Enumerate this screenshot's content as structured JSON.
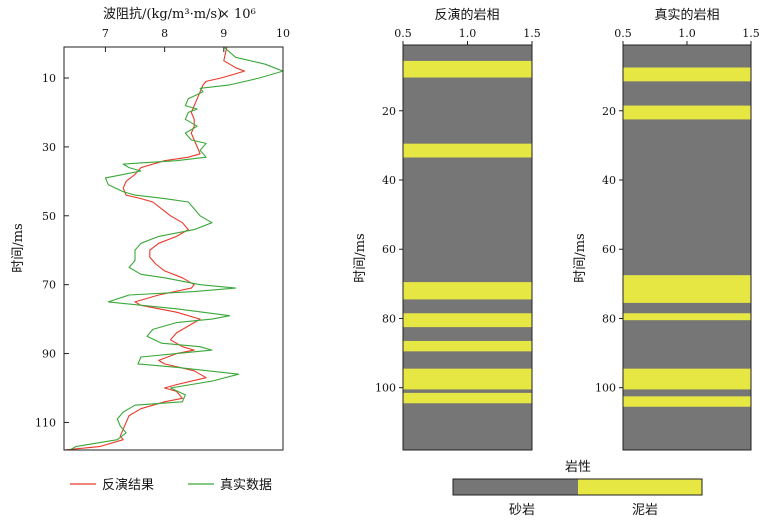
{
  "chart_data": [
    {
      "type": "line",
      "xlabel": "波阻抗/(kg/m³·m/s)",
      "xlabel_exp": "× 10⁶",
      "ylabel": "时间/ms",
      "xlim": [
        6.3,
        10
      ],
      "ylim": [
        118,
        1
      ],
      "xticks": [
        7,
        8,
        9,
        10
      ],
      "yticks": [
        10,
        30,
        50,
        70,
        90,
        110
      ],
      "series": [
        {
          "name": "反演结果",
          "color": "#e8392b",
          "points": [
            [
              9.05,
              1
            ],
            [
              9.0,
              5
            ],
            [
              9.1,
              6
            ],
            [
              9.2,
              7
            ],
            [
              9.35,
              8
            ],
            [
              9.15,
              9
            ],
            [
              8.95,
              10
            ],
            [
              8.7,
              11
            ],
            [
              8.65,
              12
            ],
            [
              8.6,
              14
            ],
            [
              8.55,
              16
            ],
            [
              8.5,
              18
            ],
            [
              8.45,
              20
            ],
            [
              8.5,
              22
            ],
            [
              8.5,
              24
            ],
            [
              8.45,
              26
            ],
            [
              8.5,
              28
            ],
            [
              8.55,
              30
            ],
            [
              8.6,
              32
            ],
            [
              8.4,
              33
            ],
            [
              8.0,
              34
            ],
            [
              7.6,
              36
            ],
            [
              7.5,
              38
            ],
            [
              7.35,
              40
            ],
            [
              7.3,
              42
            ],
            [
              7.35,
              44
            ],
            [
              7.6,
              45
            ],
            [
              7.8,
              46
            ],
            [
              7.95,
              48
            ],
            [
              8.1,
              50
            ],
            [
              8.3,
              52
            ],
            [
              8.4,
              54
            ],
            [
              8.2,
              56
            ],
            [
              7.9,
              58
            ],
            [
              7.75,
              60
            ],
            [
              7.75,
              62
            ],
            [
              7.85,
              64
            ],
            [
              8.0,
              66
            ],
            [
              8.3,
              68
            ],
            [
              8.5,
              70
            ],
            [
              8.45,
              71
            ],
            [
              7.9,
              73
            ],
            [
              7.5,
              75
            ],
            [
              7.6,
              76
            ],
            [
              8.2,
              78
            ],
            [
              8.6,
              80
            ],
            [
              8.4,
              82
            ],
            [
              8.2,
              84
            ],
            [
              8.1,
              86
            ],
            [
              8.3,
              88
            ],
            [
              8.5,
              89
            ],
            [
              8.2,
              90
            ],
            [
              7.9,
              92
            ],
            [
              8.0,
              93
            ],
            [
              8.5,
              95
            ],
            [
              8.7,
              97
            ],
            [
              8.2,
              99
            ],
            [
              8.0,
              100
            ],
            [
              8.2,
              101
            ],
            [
              8.3,
              103
            ],
            [
              8.0,
              104
            ],
            [
              7.6,
              106
            ],
            [
              7.4,
              108
            ],
            [
              7.35,
              110
            ],
            [
              7.3,
              112
            ],
            [
              7.25,
              114
            ],
            [
              7.3,
              115
            ],
            [
              6.9,
              117
            ],
            [
              6.3,
              118
            ]
          ]
        },
        {
          "name": "真实数据",
          "color": "#3aa83a",
          "points": [
            [
              9.0,
              1
            ],
            [
              9.2,
              4
            ],
            [
              9.7,
              6
            ],
            [
              10.0,
              8
            ],
            [
              9.6,
              10
            ],
            [
              9.1,
              12
            ],
            [
              8.6,
              13
            ],
            [
              8.65,
              14
            ],
            [
              8.4,
              16
            ],
            [
              8.35,
              18
            ],
            [
              8.55,
              19
            ],
            [
              8.4,
              20
            ],
            [
              8.35,
              22
            ],
            [
              8.55,
              24
            ],
            [
              8.35,
              26
            ],
            [
              8.45,
              28
            ],
            [
              8.7,
              29
            ],
            [
              8.6,
              31
            ],
            [
              8.7,
              33
            ],
            [
              8.2,
              34
            ],
            [
              7.3,
              35
            ],
            [
              7.4,
              36
            ],
            [
              7.6,
              37
            ],
            [
              7.0,
              39
            ],
            [
              7.05,
              41
            ],
            [
              7.3,
              43
            ],
            [
              7.5,
              44
            ],
            [
              8.0,
              45
            ],
            [
              8.4,
              46
            ],
            [
              8.5,
              48
            ],
            [
              8.6,
              50
            ],
            [
              8.8,
              52
            ],
            [
              8.5,
              54
            ],
            [
              7.9,
              56
            ],
            [
              7.6,
              58
            ],
            [
              7.5,
              60
            ],
            [
              7.5,
              63
            ],
            [
              7.4,
              65
            ],
            [
              7.6,
              67
            ],
            [
              8.0,
              68
            ],
            [
              8.6,
              70
            ],
            [
              9.2,
              71
            ],
            [
              8.5,
              72
            ],
            [
              7.4,
              73
            ],
            [
              7.05,
              75
            ],
            [
              8.2,
              77
            ],
            [
              9.1,
              79
            ],
            [
              8.8,
              80
            ],
            [
              8.2,
              81
            ],
            [
              7.8,
              83
            ],
            [
              7.7,
              85
            ],
            [
              7.95,
              87
            ],
            [
              8.6,
              88
            ],
            [
              8.8,
              89
            ],
            [
              8.2,
              90
            ],
            [
              7.6,
              91
            ],
            [
              7.55,
              93
            ],
            [
              8.2,
              94
            ],
            [
              9.25,
              96
            ],
            [
              8.8,
              98
            ],
            [
              8.1,
              100
            ],
            [
              8.35,
              102
            ],
            [
              8.3,
              104
            ],
            [
              7.5,
              105
            ],
            [
              7.3,
              107
            ],
            [
              7.2,
              109
            ],
            [
              7.25,
              111
            ],
            [
              7.35,
              113
            ],
            [
              7.2,
              115
            ],
            [
              6.5,
              117
            ],
            [
              6.4,
              118
            ]
          ]
        }
      ]
    },
    {
      "type": "heatmap",
      "title": "反演的岩相",
      "ylabel": "时间/ms",
      "xlim": [
        0.5,
        1.5
      ],
      "xticks": [
        0.5,
        1.0,
        1.5
      ],
      "ylim": [
        118,
        1
      ],
      "yticks": [
        20,
        40,
        60,
        80,
        100
      ],
      "mudstone_intervals": [
        [
          5.6,
          10.4
        ],
        [
          29.5,
          33.5
        ],
        [
          69.5,
          74.5
        ],
        [
          78.5,
          82.5
        ],
        [
          86.5,
          89.5
        ],
        [
          94.5,
          100.5
        ],
        [
          101.5,
          104.5
        ]
      ]
    },
    {
      "type": "heatmap",
      "title": "真实的岩相",
      "ylabel": "时间/ms",
      "xlim": [
        0.5,
        1.5
      ],
      "xticks": [
        0.5,
        1.0,
        1.5
      ],
      "ylim": [
        118,
        1
      ],
      "yticks": [
        20,
        40,
        60,
        80,
        100
      ],
      "mudstone_intervals": [
        [
          7.5,
          11.5
        ],
        [
          18.5,
          22.5
        ],
        [
          67.5,
          75.5
        ],
        [
          78.5,
          80.5
        ],
        [
          94.5,
          100.5
        ],
        [
          102.5,
          105.5
        ]
      ]
    }
  ],
  "colorbar": {
    "title": "岩性",
    "labels": [
      "砂岩",
      "泥岩"
    ],
    "colors": [
      "#767676",
      "#e7e743"
    ]
  },
  "colors": {
    "sandstone": "#767676",
    "mudstone": "#e7e743"
  }
}
